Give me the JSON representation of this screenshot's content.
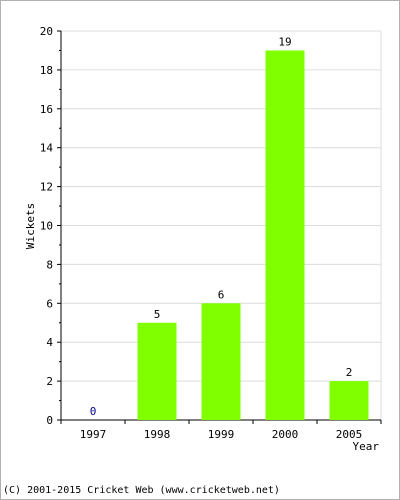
{
  "chart_data": {
    "type": "bar",
    "categories": [
      "1997",
      "1998",
      "1999",
      "2000",
      "2005"
    ],
    "values": [
      0,
      5,
      6,
      19,
      2
    ],
    "data_labels": [
      "0",
      "5",
      "6",
      "19",
      "2"
    ],
    "xlabel": "Year",
    "ylabel": "Wickets",
    "ylim": [
      0,
      20
    ],
    "yticks": [
      0,
      2,
      4,
      6,
      8,
      10,
      12,
      14,
      16,
      18,
      20
    ],
    "grid": true,
    "bar_color": "#80ff00",
    "zero_label_color": "#00008b"
  },
  "footer": {
    "copyright": "(C) 2001-2015 Cricket Web (www.cricketweb.net)"
  }
}
